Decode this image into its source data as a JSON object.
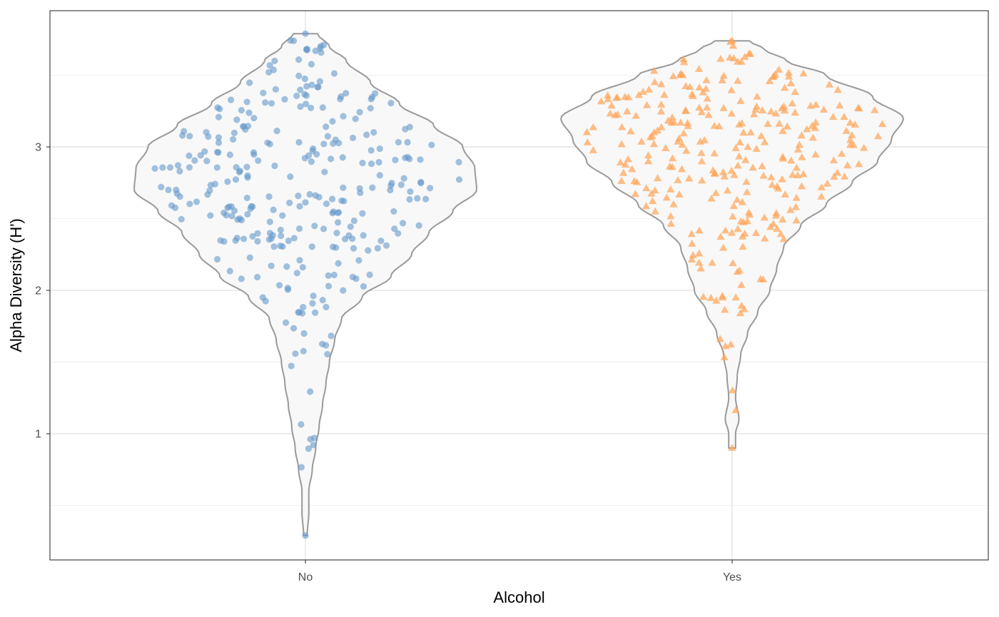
{
  "chart_data": {
    "type": "violin",
    "xlabel": "Alcohol",
    "ylabel": "Alpha Diversity (H')",
    "categories": [
      "No",
      "Yes"
    ],
    "ylim": [
      0.12,
      3.95
    ],
    "y_ticks": [
      "1",
      "2",
      "3"
    ],
    "y_tick_values": [
      1,
      2,
      3
    ],
    "grid": true,
    "legend": "none",
    "series": [
      {
        "category": "No",
        "marker": "circle",
        "point_color": "#6699CC",
        "min": 0.29,
        "max": 3.79,
        "n_points": 300,
        "density_profile": [
          [
            0.29,
            0.01
          ],
          [
            0.45,
            0.02
          ],
          [
            0.6,
            0.02
          ],
          [
            0.75,
            0.04
          ],
          [
            0.9,
            0.06
          ],
          [
            1.05,
            0.08
          ],
          [
            1.2,
            0.1
          ],
          [
            1.35,
            0.12
          ],
          [
            1.5,
            0.14
          ],
          [
            1.65,
            0.17
          ],
          [
            1.8,
            0.21
          ],
          [
            1.95,
            0.33
          ],
          [
            2.1,
            0.5
          ],
          [
            2.25,
            0.62
          ],
          [
            2.4,
            0.72
          ],
          [
            2.55,
            0.86
          ],
          [
            2.7,
            1.0
          ],
          [
            2.85,
            0.99
          ],
          [
            3.0,
            0.92
          ],
          [
            3.15,
            0.75
          ],
          [
            3.3,
            0.55
          ],
          [
            3.45,
            0.38
          ],
          [
            3.6,
            0.24
          ],
          [
            3.7,
            0.14
          ],
          [
            3.79,
            0.07
          ]
        ]
      },
      {
        "category": "Yes",
        "marker": "triangle",
        "point_color": "#FFA456",
        "min": 0.9,
        "max": 3.74,
        "n_points": 300,
        "density_profile": [
          [
            0.9,
            0.02
          ],
          [
            1.0,
            0.02
          ],
          [
            1.1,
            0.04
          ],
          [
            1.25,
            0.02
          ],
          [
            1.4,
            0.03
          ],
          [
            1.55,
            0.05
          ],
          [
            1.7,
            0.09
          ],
          [
            1.85,
            0.15
          ],
          [
            2.0,
            0.22
          ],
          [
            2.15,
            0.26
          ],
          [
            2.3,
            0.3
          ],
          [
            2.45,
            0.4
          ],
          [
            2.6,
            0.55
          ],
          [
            2.75,
            0.7
          ],
          [
            2.9,
            0.85
          ],
          [
            3.05,
            0.93
          ],
          [
            3.2,
            1.0
          ],
          [
            3.35,
            0.82
          ],
          [
            3.5,
            0.55
          ],
          [
            3.6,
            0.32
          ],
          [
            3.68,
            0.19
          ],
          [
            3.74,
            0.1
          ]
        ]
      }
    ]
  }
}
